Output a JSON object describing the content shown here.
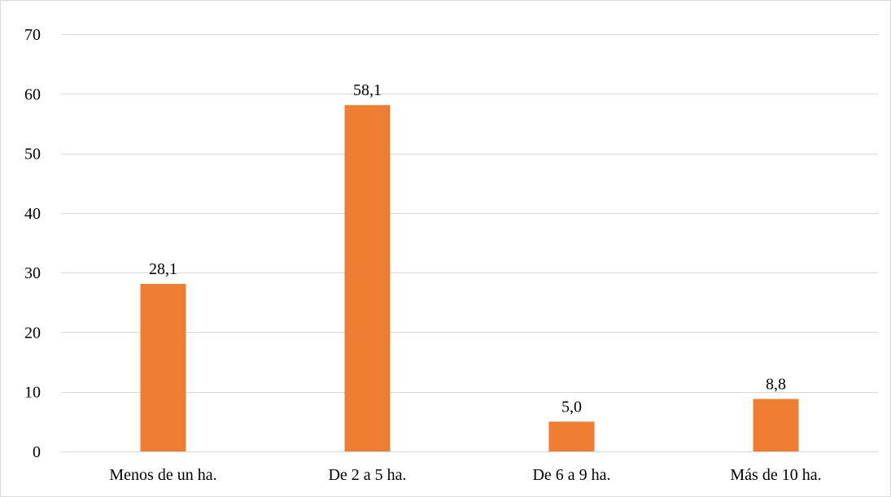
{
  "chart_data": {
    "type": "bar",
    "categories": [
      "Menos de un ha.",
      "De 2 a 5 ha.",
      "De 6 a 9 ha.",
      "Más de 10 ha."
    ],
    "values": [
      28.1,
      58.1,
      5.0,
      8.8
    ],
    "data_labels": [
      "28,1",
      "58,1",
      "5,0",
      "8,8"
    ],
    "yticks": [
      0,
      10,
      20,
      30,
      40,
      50,
      60,
      70
    ],
    "ylim": [
      0,
      70
    ],
    "grid": true,
    "legend": "none",
    "bar_color": "#ED7D31",
    "grid_color": "#D9D9D9"
  }
}
